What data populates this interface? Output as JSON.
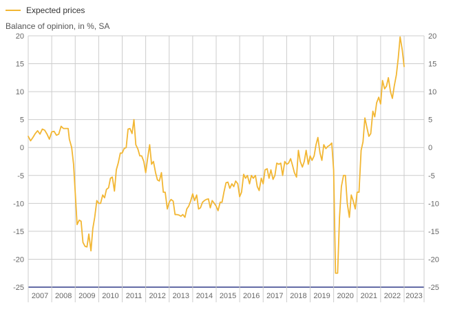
{
  "legend": {
    "label": "Expected prices"
  },
  "ylabel": "Balance of opinion, in %, SA",
  "colors": {
    "series": "#f2b632",
    "grid": "#cccccc",
    "baseline": "#2e3a87"
  },
  "chart_data": {
    "type": "line",
    "ylabel": "Balance of opinion, in %, SA",
    "ylim": [
      -25,
      20
    ],
    "yticks": [
      20,
      15,
      10,
      5,
      0,
      -5,
      -10,
      -15,
      -20,
      -25
    ],
    "xlim": [
      2007,
      2023.85
    ],
    "years": [
      2007,
      2008,
      2009,
      2010,
      2011,
      2012,
      2013,
      2014,
      2015,
      2016,
      2017,
      2018,
      2019,
      2020,
      2021,
      2022,
      2023
    ],
    "grid": true,
    "legend_position": "top-left",
    "series": [
      {
        "name": "Expected prices",
        "points": [
          [
            2007.0,
            2.0
          ],
          [
            2007.1,
            1.2
          ],
          [
            2007.2,
            1.8
          ],
          [
            2007.3,
            2.5
          ],
          [
            2007.4,
            3.0
          ],
          [
            2007.5,
            2.4
          ],
          [
            2007.6,
            3.3
          ],
          [
            2007.7,
            3.1
          ],
          [
            2007.8,
            2.4
          ],
          [
            2007.9,
            1.5
          ],
          [
            2008.0,
            2.8
          ],
          [
            2008.1,
            2.9
          ],
          [
            2008.2,
            2.2
          ],
          [
            2008.3,
            2.4
          ],
          [
            2008.4,
            3.8
          ],
          [
            2008.5,
            3.4
          ],
          [
            2008.6,
            3.4
          ],
          [
            2008.7,
            3.4
          ],
          [
            2008.75,
            1.5
          ],
          [
            2008.85,
            0.0
          ],
          [
            2008.93,
            -3.0
          ],
          [
            2009.0,
            -8.0
          ],
          [
            2009.08,
            -13.8
          ],
          [
            2009.17,
            -13.0
          ],
          [
            2009.25,
            -13.2
          ],
          [
            2009.33,
            -17.0
          ],
          [
            2009.42,
            -17.7
          ],
          [
            2009.5,
            -17.8
          ],
          [
            2009.58,
            -15.5
          ],
          [
            2009.67,
            -18.5
          ],
          [
            2009.75,
            -14.5
          ],
          [
            2009.83,
            -12.5
          ],
          [
            2009.92,
            -9.5
          ],
          [
            2010.0,
            -10.0
          ],
          [
            2010.08,
            -10.0
          ],
          [
            2010.17,
            -8.5
          ],
          [
            2010.25,
            -9.0
          ],
          [
            2010.33,
            -7.5
          ],
          [
            2010.42,
            -7.2
          ],
          [
            2010.5,
            -5.5
          ],
          [
            2010.58,
            -5.3
          ],
          [
            2010.67,
            -7.8
          ],
          [
            2010.75,
            -4.0
          ],
          [
            2010.83,
            -2.8
          ],
          [
            2010.92,
            -1.0
          ],
          [
            2011.0,
            -1.0
          ],
          [
            2011.08,
            -0.2
          ],
          [
            2011.17,
            0.0
          ],
          [
            2011.25,
            3.3
          ],
          [
            2011.33,
            3.4
          ],
          [
            2011.42,
            2.5
          ],
          [
            2011.5,
            5.0
          ],
          [
            2011.58,
            0.5
          ],
          [
            2011.67,
            -0.3
          ],
          [
            2011.75,
            -1.5
          ],
          [
            2011.83,
            -1.5
          ],
          [
            2011.92,
            -2.5
          ],
          [
            2012.0,
            -4.5
          ],
          [
            2012.08,
            -2.0
          ],
          [
            2012.17,
            0.5
          ],
          [
            2012.25,
            -3.0
          ],
          [
            2012.33,
            -2.5
          ],
          [
            2012.42,
            -4.5
          ],
          [
            2012.5,
            -5.8
          ],
          [
            2012.58,
            -6.0
          ],
          [
            2012.67,
            -4.5
          ],
          [
            2012.75,
            -8.0
          ],
          [
            2012.83,
            -8.0
          ],
          [
            2012.92,
            -11.0
          ],
          [
            2013.0,
            -9.8
          ],
          [
            2013.08,
            -9.3
          ],
          [
            2013.17,
            -9.6
          ],
          [
            2013.25,
            -12.0
          ],
          [
            2013.33,
            -12.0
          ],
          [
            2013.42,
            -12.1
          ],
          [
            2013.5,
            -12.3
          ],
          [
            2013.58,
            -12.0
          ],
          [
            2013.67,
            -12.5
          ],
          [
            2013.75,
            -11.0
          ],
          [
            2013.83,
            -10.5
          ],
          [
            2013.92,
            -9.5
          ],
          [
            2014.0,
            -8.3
          ],
          [
            2014.08,
            -9.5
          ],
          [
            2014.17,
            -8.5
          ],
          [
            2014.25,
            -11.0
          ],
          [
            2014.33,
            -10.8
          ],
          [
            2014.42,
            -9.8
          ],
          [
            2014.5,
            -9.5
          ],
          [
            2014.58,
            -9.3
          ],
          [
            2014.67,
            -9.2
          ],
          [
            2014.75,
            -10.8
          ],
          [
            2014.83,
            -9.5
          ],
          [
            2014.92,
            -10.0
          ],
          [
            2015.0,
            -10.5
          ],
          [
            2015.08,
            -11.3
          ],
          [
            2015.17,
            -9.8
          ],
          [
            2015.25,
            -9.8
          ],
          [
            2015.33,
            -8.0
          ],
          [
            2015.42,
            -6.3
          ],
          [
            2015.5,
            -6.2
          ],
          [
            2015.58,
            -7.3
          ],
          [
            2015.67,
            -6.5
          ],
          [
            2015.75,
            -7.0
          ],
          [
            2015.83,
            -6.0
          ],
          [
            2015.92,
            -6.5
          ],
          [
            2016.0,
            -8.8
          ],
          [
            2016.08,
            -8.0
          ],
          [
            2016.17,
            -4.8
          ],
          [
            2016.25,
            -5.5
          ],
          [
            2016.33,
            -5.0
          ],
          [
            2016.42,
            -6.5
          ],
          [
            2016.5,
            -5.0
          ],
          [
            2016.58,
            -5.5
          ],
          [
            2016.67,
            -5.0
          ],
          [
            2016.75,
            -7.0
          ],
          [
            2016.83,
            -7.7
          ],
          [
            2016.92,
            -5.5
          ],
          [
            2017.0,
            -6.5
          ],
          [
            2017.08,
            -4.0
          ],
          [
            2017.17,
            -3.8
          ],
          [
            2017.25,
            -5.5
          ],
          [
            2017.33,
            -4.0
          ],
          [
            2017.42,
            -5.7
          ],
          [
            2017.5,
            -5.0
          ],
          [
            2017.58,
            -2.8
          ],
          [
            2017.67,
            -3.0
          ],
          [
            2017.75,
            -2.8
          ],
          [
            2017.83,
            -5.0
          ],
          [
            2017.92,
            -2.5
          ],
          [
            2018.0,
            -3.0
          ],
          [
            2018.08,
            -2.8
          ],
          [
            2018.17,
            -2.0
          ],
          [
            2018.25,
            -3.2
          ],
          [
            2018.33,
            -4.5
          ],
          [
            2018.42,
            -5.3
          ],
          [
            2018.5,
            -0.5
          ],
          [
            2018.58,
            -2.5
          ],
          [
            2018.67,
            -3.5
          ],
          [
            2018.75,
            -2.5
          ],
          [
            2018.83,
            -0.5
          ],
          [
            2018.92,
            -3.0
          ],
          [
            2019.0,
            -1.5
          ],
          [
            2019.08,
            -2.3
          ],
          [
            2019.17,
            -1.5
          ],
          [
            2019.25,
            0.5
          ],
          [
            2019.33,
            1.8
          ],
          [
            2019.42,
            -1.0
          ],
          [
            2019.5,
            -2.3
          ],
          [
            2019.58,
            0.5
          ],
          [
            2019.67,
            -0.2
          ],
          [
            2019.75,
            0.2
          ],
          [
            2019.83,
            0.4
          ],
          [
            2019.92,
            0.8
          ],
          [
            2020.0,
            -4.0
          ],
          [
            2020.08,
            -22.5
          ],
          [
            2020.17,
            -22.5
          ],
          [
            2020.25,
            -12.5
          ],
          [
            2020.33,
            -7.0
          ],
          [
            2020.42,
            -5.0
          ],
          [
            2020.5,
            -5.0
          ],
          [
            2020.58,
            -10.0
          ],
          [
            2020.67,
            -12.5
          ],
          [
            2020.75,
            -8.5
          ],
          [
            2020.83,
            -9.5
          ],
          [
            2020.92,
            -11.0
          ],
          [
            2021.0,
            -8.0
          ],
          [
            2021.08,
            -8.0
          ],
          [
            2021.17,
            -0.5
          ],
          [
            2021.25,
            1.0
          ],
          [
            2021.33,
            5.3
          ],
          [
            2021.42,
            3.5
          ],
          [
            2021.5,
            2.0
          ],
          [
            2021.58,
            2.5
          ],
          [
            2021.67,
            6.5
          ],
          [
            2021.75,
            5.5
          ],
          [
            2021.83,
            8.0
          ],
          [
            2021.92,
            9.0
          ],
          [
            2022.0,
            7.8
          ],
          [
            2022.08,
            12.0
          ],
          [
            2022.17,
            10.5
          ],
          [
            2022.25,
            11.0
          ],
          [
            2022.33,
            12.5
          ],
          [
            2022.42,
            10.0
          ],
          [
            2022.5,
            8.8
          ],
          [
            2022.58,
            11.0
          ],
          [
            2022.67,
            13.0
          ],
          [
            2022.75,
            16.0
          ],
          [
            2022.83,
            19.8
          ],
          [
            2022.92,
            17.5
          ],
          [
            2023.0,
            14.5
          ]
        ]
      }
    ]
  }
}
